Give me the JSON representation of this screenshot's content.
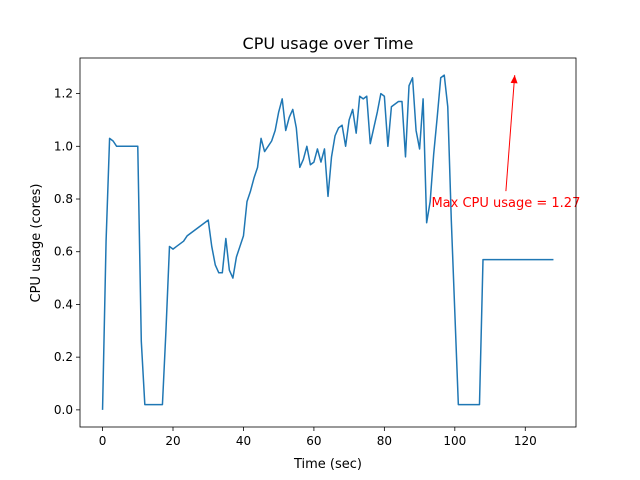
{
  "chart_data": {
    "type": "line",
    "title": "CPU usage over Time",
    "xlabel": "Time (sec)",
    "ylabel": "CPU usage (cores)",
    "xlim": [
      -6.4,
      134.4
    ],
    "ylim": [
      -0.065,
      1.335
    ],
    "xticks": [
      0,
      20,
      40,
      60,
      80,
      100,
      120
    ],
    "yticks": [
      0.0,
      0.2,
      0.4,
      0.6,
      0.8,
      1.0,
      1.2
    ],
    "ytick_format": 1,
    "grid": false,
    "line_color": "#1f77b4",
    "annotation": {
      "text": "Max CPU usage = 1.27",
      "color": "#ff0000",
      "point": [
        117,
        1.27
      ],
      "text_anchor_point": [
        114.5,
        0.83
      ]
    },
    "series": [
      {
        "x": [
          0,
          1,
          2,
          3,
          4,
          5,
          6,
          7,
          8,
          9,
          10,
          11,
          12,
          13,
          14,
          15,
          16,
          17,
          18,
          19,
          20,
          21,
          22,
          23,
          24,
          25,
          26,
          27,
          28,
          29,
          30,
          31,
          32,
          33,
          34,
          35,
          36,
          37,
          38,
          39,
          40,
          41,
          42,
          43,
          44,
          45,
          46,
          47,
          48,
          49,
          50,
          51,
          52,
          53,
          54,
          55,
          56,
          57,
          58,
          59,
          60,
          61,
          62,
          63,
          64,
          65,
          66,
          67,
          68,
          69,
          70,
          71,
          72,
          73,
          74,
          75,
          76,
          77,
          78,
          79,
          80,
          81,
          82,
          83,
          84,
          85,
          86,
          87,
          88,
          89,
          90,
          91,
          92,
          93,
          94,
          95,
          96,
          97,
          98,
          99,
          100,
          101,
          102,
          103,
          104,
          105,
          106,
          107,
          108,
          109,
          110,
          111,
          112,
          113,
          114,
          115,
          116,
          117,
          118,
          119,
          120,
          121,
          122,
          123,
          124,
          125,
          126,
          127,
          128
        ],
        "y": [
          0.0,
          0.64,
          1.03,
          1.02,
          1.0,
          1.0,
          1.0,
          1.0,
          1.0,
          1.0,
          1.0,
          0.26,
          0.02,
          0.02,
          0.02,
          0.02,
          0.02,
          0.02,
          0.3,
          0.62,
          0.61,
          0.62,
          0.63,
          0.64,
          0.66,
          0.67,
          0.68,
          0.69,
          0.7,
          0.71,
          0.72,
          0.62,
          0.55,
          0.52,
          0.52,
          0.65,
          0.53,
          0.5,
          0.58,
          0.62,
          0.66,
          0.79,
          0.83,
          0.88,
          0.92,
          1.03,
          0.98,
          1.0,
          1.02,
          1.06,
          1.13,
          1.18,
          1.06,
          1.11,
          1.14,
          1.07,
          0.92,
          0.95,
          1.0,
          0.93,
          0.94,
          0.99,
          0.94,
          0.99,
          0.81,
          0.96,
          1.04,
          1.07,
          1.08,
          1.0,
          1.1,
          1.14,
          1.05,
          1.19,
          1.18,
          1.19,
          1.01,
          1.07,
          1.13,
          1.2,
          1.19,
          1.0,
          1.15,
          1.16,
          1.17,
          1.17,
          0.96,
          1.23,
          1.26,
          1.06,
          0.99,
          1.18,
          0.71,
          0.79,
          0.97,
          1.11,
          1.26,
          1.27,
          1.15,
          0.72,
          0.37,
          0.02,
          0.02,
          0.02,
          0.02,
          0.02,
          0.02,
          0.02,
          0.57,
          0.57,
          0.57,
          0.57,
          0.57,
          0.57,
          0.57,
          0.57,
          0.57,
          0.57,
          0.57,
          0.57,
          0.57,
          0.57,
          0.57,
          0.57,
          0.57,
          0.57,
          0.57,
          0.57,
          0.57
        ]
      }
    ]
  }
}
